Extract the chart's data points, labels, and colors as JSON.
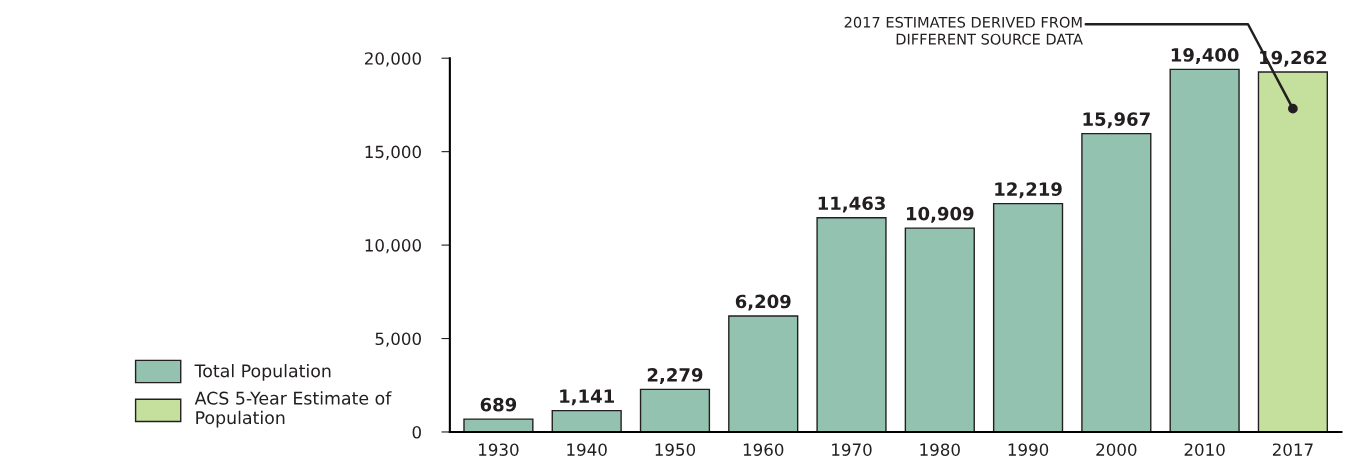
{
  "chart_data": {
    "type": "bar",
    "categories": [
      "1930",
      "1940",
      "1950",
      "1960",
      "1970",
      "1980",
      "1990",
      "2000",
      "2010",
      "2017"
    ],
    "series": [
      {
        "name": "Total Population",
        "color": "#93c2b0",
        "values": [
          689,
          1141,
          2279,
          6209,
          11463,
          10909,
          12219,
          15967,
          19400,
          null
        ],
        "value_labels": [
          "689",
          "1,141",
          "2,279",
          "6,209",
          "11,463",
          "10,909",
          "12,219",
          "15,967",
          "19,400",
          null
        ]
      },
      {
        "name": "ACS 5-Year Estimate of Population",
        "color": "#c5df9d",
        "values": [
          null,
          null,
          null,
          null,
          null,
          null,
          null,
          null,
          null,
          19262
        ],
        "value_labels": [
          null,
          null,
          null,
          null,
          null,
          null,
          null,
          null,
          null,
          "19,262"
        ]
      }
    ],
    "ylim": [
      0,
      20000
    ],
    "yticks": [
      {
        "value": 0,
        "label": "0"
      },
      {
        "value": 5000,
        "label": "5,000"
      },
      {
        "value": 10000,
        "label": "10,000"
      },
      {
        "value": 15000,
        "label": "15,000"
      },
      {
        "value": 20000,
        "label": "20,000"
      }
    ],
    "grid": false,
    "legend": "bottom left",
    "annotations": [
      {
        "text": "2017 ESTIMATES DERIVED FROM\nDIFFERENT SOURCE DATA",
        "x": "2017",
        "y": 17300
      }
    ]
  }
}
